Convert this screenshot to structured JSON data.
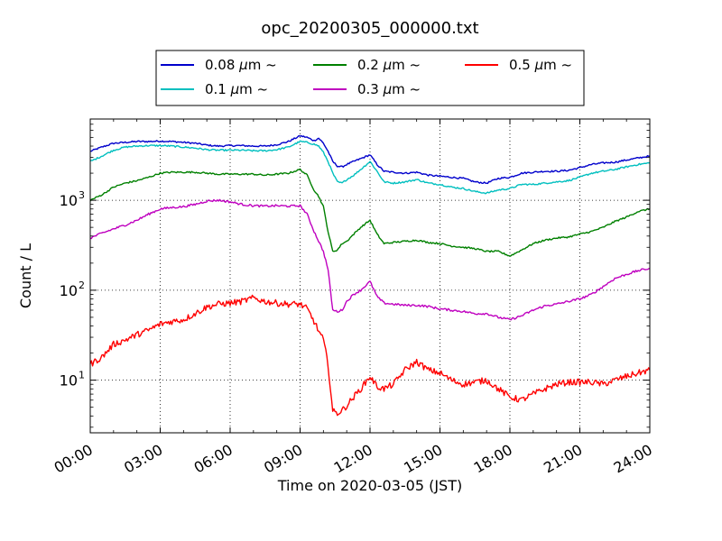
{
  "chart_data": {
    "type": "line",
    "title": "opc_20200305_000000.txt",
    "xlabel": "Time on 2020-03-05 (JST)",
    "ylabel": "Count / L",
    "xlim_hours": [
      0,
      24
    ],
    "ylim": [
      2.6,
      8000
    ],
    "yscale": "log",
    "grid": true,
    "legend_position": "top-center",
    "x_tick_labels": [
      "00:00",
      "03:00",
      "06:00",
      "09:00",
      "12:00",
      "15:00",
      "18:00",
      "21:00",
      "24:00"
    ],
    "y_tick_labels": [
      {
        "value": 10,
        "base": "10",
        "exp": "1"
      },
      {
        "value": 100,
        "base": "10",
        "exp": "2"
      },
      {
        "value": 1000,
        "base": "10",
        "exp": "3"
      }
    ],
    "x_hours": [
      0,
      0.5,
      1,
      1.5,
      2,
      2.5,
      3,
      3.5,
      4,
      4.5,
      5,
      5.5,
      6,
      6.5,
      7,
      7.5,
      8,
      8.5,
      9,
      9.3,
      9.6,
      9.8,
      10,
      10.2,
      10.4,
      10.6,
      10.8,
      11,
      11.3,
      11.6,
      12,
      12.3,
      12.6,
      13,
      13.5,
      14,
      14.5,
      15,
      15.5,
      16,
      16.5,
      17,
      17.5,
      18,
      18.5,
      19,
      19.5,
      20,
      20.5,
      21,
      21.5,
      22,
      22.5,
      23,
      23.5,
      24
    ],
    "series": [
      {
        "name": "0.08 $\\mu$m ~",
        "color": "#0000cc",
        "values": [
          3500,
          3900,
          4300,
          4400,
          4500,
          4500,
          4550,
          4500,
          4400,
          4300,
          4100,
          4000,
          4050,
          4050,
          4000,
          4000,
          4150,
          4500,
          5200,
          5000,
          4600,
          4900,
          4300,
          3500,
          2700,
          2400,
          2350,
          2500,
          2700,
          2900,
          3200,
          2500,
          2100,
          2050,
          2000,
          2050,
          1900,
          1850,
          1800,
          1750,
          1600,
          1550,
          1750,
          1800,
          2000,
          2050,
          2100,
          2100,
          2150,
          2300,
          2500,
          2600,
          2650,
          2800,
          2950,
          3100
        ]
      },
      {
        "name": "0.1 $\\mu$m ~",
        "color": "#00bfbf",
        "values": [
          2700,
          3100,
          3600,
          3900,
          4000,
          4050,
          4050,
          4000,
          3900,
          3800,
          3650,
          3600,
          3600,
          3600,
          3550,
          3550,
          3650,
          3900,
          4500,
          4400,
          4200,
          4000,
          3400,
          2700,
          2000,
          1600,
          1550,
          1700,
          1900,
          2200,
          2700,
          2100,
          1600,
          1550,
          1600,
          1700,
          1550,
          1500,
          1400,
          1350,
          1250,
          1200,
          1300,
          1350,
          1500,
          1500,
          1550,
          1600,
          1650,
          1800,
          2000,
          2100,
          2200,
          2350,
          2500,
          2600
        ]
      },
      {
        "name": "0.2 $\\mu$m ~",
        "color": "#008000",
        "values": [
          1000,
          1150,
          1400,
          1550,
          1650,
          1800,
          2000,
          2050,
          2050,
          2050,
          2000,
          1950,
          1950,
          1950,
          1950,
          1900,
          1950,
          2000,
          2200,
          1900,
          1300,
          1100,
          850,
          450,
          270,
          280,
          330,
          350,
          420,
          500,
          600,
          420,
          330,
          340,
          350,
          360,
          340,
          330,
          310,
          300,
          290,
          270,
          270,
          240,
          280,
          330,
          360,
          380,
          390,
          420,
          450,
          500,
          580,
          650,
          750,
          800
        ]
      },
      {
        "name": "0.3 $\\mu$m ~",
        "color": "#bf00bf",
        "values": [
          380,
          430,
          480,
          530,
          600,
          700,
          800,
          830,
          850,
          900,
          980,
          1000,
          960,
          900,
          870,
          860,
          870,
          860,
          870,
          700,
          450,
          350,
          270,
          170,
          60,
          58,
          60,
          75,
          90,
          100,
          125,
          85,
          72,
          70,
          68,
          68,
          66,
          62,
          60,
          58,
          55,
          55,
          50,
          47,
          52,
          60,
          67,
          70,
          75,
          80,
          90,
          110,
          135,
          150,
          165,
          175
        ]
      },
      {
        "name": "0.5 $\\mu$m ~",
        "color": "#ff0000",
        "values": [
          15,
          18,
          25,
          28,
          32,
          36,
          42,
          45,
          47,
          55,
          65,
          70,
          72,
          75,
          82,
          75,
          72,
          70,
          70,
          62,
          45,
          35,
          28,
          15,
          4.5,
          4.3,
          4.6,
          5.2,
          6.5,
          8,
          11,
          8.5,
          8,
          9,
          13,
          16,
          13,
          12,
          10,
          9,
          9.5,
          10,
          8,
          6.5,
          6,
          7,
          8,
          9,
          9.5,
          9.5,
          9.5,
          9,
          10,
          11,
          12,
          13
        ]
      }
    ]
  }
}
